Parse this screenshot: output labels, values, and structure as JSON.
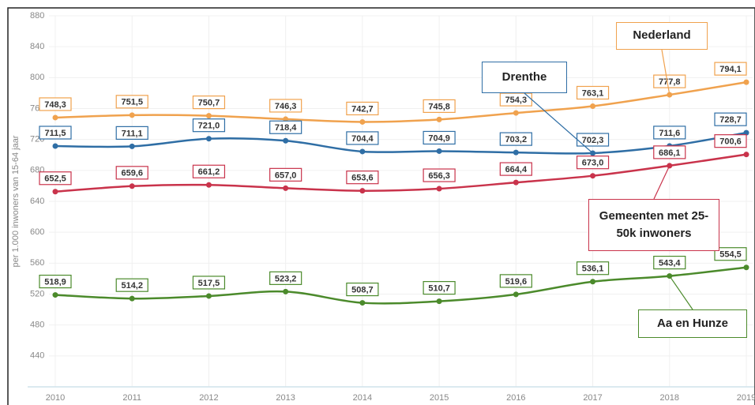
{
  "chart_data": {
    "type": "line",
    "y_label": "per 1.000 inwoners van 15-64 jaar",
    "categories": [
      "2010",
      "2011",
      "2012",
      "2013",
      "2014",
      "2015",
      "2016",
      "2017",
      "2018",
      "2019"
    ],
    "ylim": [
      400,
      880
    ],
    "yticks": [
      440,
      480,
      520,
      560,
      600,
      640,
      680,
      720,
      760,
      800,
      840,
      880
    ],
    "grid": true,
    "series": [
      {
        "name": "Nederland",
        "color": "#f0a24e",
        "values": [
          748.3,
          751.5,
          750.7,
          746.3,
          742.7,
          745.8,
          754.3,
          763.1,
          777.8,
          794.1
        ],
        "value_labels": [
          "748,3",
          "751,5",
          "750,7",
          "746,3",
          "742,7",
          "745,8",
          "754,3",
          "763,1",
          "777,8",
          "794,1"
        ]
      },
      {
        "name": "Drenthe",
        "color": "#2f6ea5",
        "values": [
          711.5,
          711.1,
          721.0,
          718.4,
          704.4,
          704.9,
          703.2,
          702.3,
          711.6,
          728.7
        ],
        "value_labels": [
          "711,5",
          "711,1",
          "721,0",
          "718,4",
          "704,4",
          "704,9",
          "703,2",
          "702,3",
          "711,6",
          "728,7"
        ]
      },
      {
        "name": "Gemeenten met 25-50k inwoners",
        "color": "#c9334b",
        "values": [
          652.5,
          659.6,
          661.2,
          657.0,
          653.6,
          656.3,
          664.4,
          673.0,
          686.1,
          700.6
        ],
        "value_labels": [
          "652,5",
          "659,6",
          "661,2",
          "657,0",
          "653,6",
          "656,3",
          "664,4",
          "673,0",
          "686,1",
          "700,6"
        ]
      },
      {
        "name": "Aa en Hunze",
        "color": "#4b8a2b",
        "values": [
          518.9,
          514.2,
          517.5,
          523.2,
          508.7,
          510.7,
          519.6,
          536.1,
          543.4,
          554.5
        ],
        "value_labels": [
          "518,9",
          "514,2",
          "517,5",
          "523,2",
          "508,7",
          "510,7",
          "519,6",
          "536,1",
          "543,4",
          "554,5"
        ]
      }
    ]
  }
}
